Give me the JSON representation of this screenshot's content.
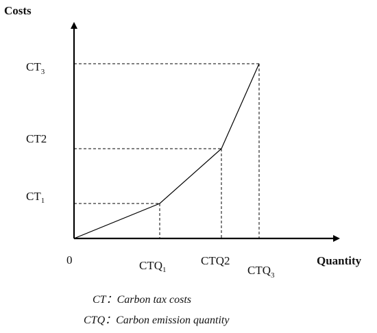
{
  "axes": {
    "y_title": "Costs",
    "x_title": "Quantity",
    "origin": "0"
  },
  "y_labels": [
    {
      "main": "CT",
      "sub": "1"
    },
    {
      "main": "CT",
      "sub": "2"
    },
    {
      "main": "CT",
      "sub": "3"
    }
  ],
  "x_labels": [
    {
      "main": "CTQ",
      "sub": "1"
    },
    {
      "main": "CTQ",
      "sub": "2"
    },
    {
      "main": "CTQ",
      "sub": "3"
    }
  ],
  "legend": {
    "ct": "CT：Carbon tax costs",
    "ctq": "CTQ：Carbon emission quantity"
  }
}
